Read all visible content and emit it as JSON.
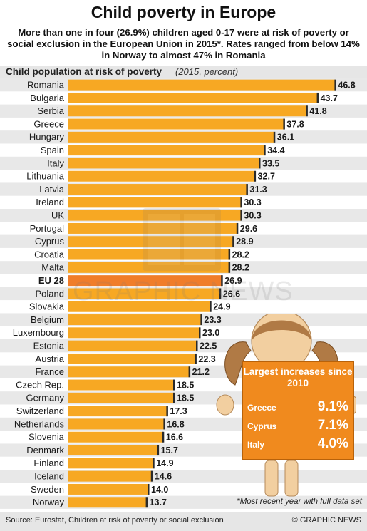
{
  "title": "Child poverty in Europe",
  "subtitle": "More than one in four (26.9%) children aged 0-17 were at risk of poverty or social exclusion in the European Union in 2015*. Rates ranged from below 14% in Norway to almost 47% in Romania",
  "chart_header": {
    "main": "Child population at risk of poverty",
    "paren": "(2015, percent)"
  },
  "colors": {
    "bar": "#f7a823",
    "highlight": "#f07d2a",
    "stripe": "#e8e8e8",
    "callout": "#f08a1e"
  },
  "chart_data": {
    "type": "bar",
    "orientation": "horizontal",
    "title": "Child population at risk of poverty",
    "subtitle": "(2015, percent)",
    "categories": [
      "Romania",
      "Bulgaria",
      "Serbia",
      "Greece",
      "Hungary",
      "Spain",
      "Italy",
      "Lithuania",
      "Latvia",
      "Ireland",
      "UK",
      "Portugal",
      "Cyprus",
      "Croatia",
      "Malta",
      "EU 28",
      "Poland",
      "Slovakia",
      "Belgium",
      "Luxembourg",
      "Estonia",
      "Austria",
      "France",
      "Czech Rep.",
      "Germany",
      "Switzerland",
      "Netherlands",
      "Slovenia",
      "Denmark",
      "Finland",
      "Iceland",
      "Sweden",
      "Norway"
    ],
    "values": [
      46.8,
      43.7,
      41.8,
      37.8,
      36.1,
      34.4,
      33.5,
      32.7,
      31.3,
      30.3,
      30.3,
      29.6,
      28.9,
      28.2,
      28.2,
      26.9,
      26.6,
      24.9,
      23.3,
      23.0,
      22.5,
      22.3,
      21.2,
      18.5,
      18.5,
      17.3,
      16.8,
      16.6,
      15.7,
      14.9,
      14.6,
      14.0,
      13.7
    ],
    "highlight": "EU 28",
    "xlim": [
      0,
      47
    ]
  },
  "callout": {
    "title": "Largest increases since 2010",
    "items": [
      {
        "country": "Greece",
        "value": "9.1%"
      },
      {
        "country": "Cyprus",
        "value": "7.1%"
      },
      {
        "country": "Italy",
        "value": "4.0%"
      }
    ]
  },
  "watermark": {
    "badge": "GN",
    "text": "GRAPHIC NEWS"
  },
  "footnote": "*Most recent year with full data set",
  "footer": {
    "source": "Source: Eurostat, Children at risk of poverty or social exclusion",
    "brand": "© GRAPHIC NEWS"
  }
}
